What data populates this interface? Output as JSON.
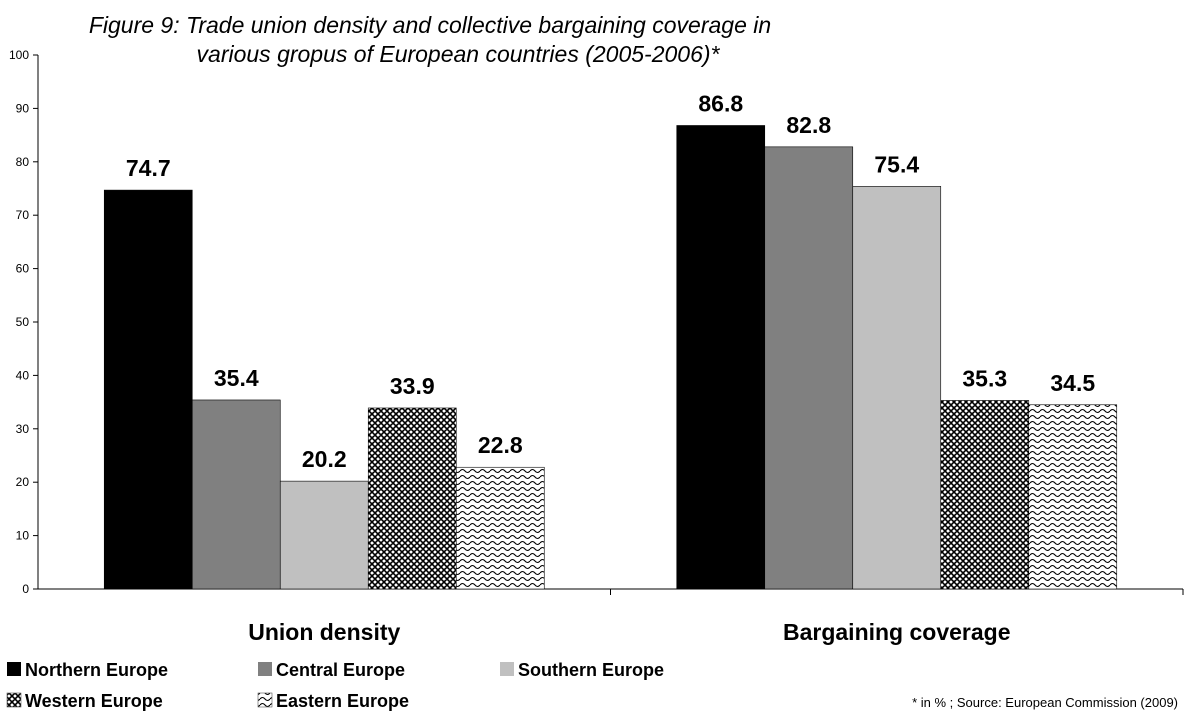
{
  "chart_data": {
    "type": "bar",
    "title_lines": [
      "Figure 9:  Trade union density and collective bargaining coverage in",
      "various gropus of European countries (2005-2006)*"
    ],
    "categories": [
      "Union density",
      "Bargaining coverage"
    ],
    "series": [
      {
        "name": "Northern Europe",
        "values": [
          74.7,
          86.8
        ],
        "fill": "#000000",
        "pattern": "solid"
      },
      {
        "name": "Central Europe",
        "values": [
          35.4,
          82.8
        ],
        "fill": "#808080",
        "pattern": "solid"
      },
      {
        "name": "Southern Europe",
        "values": [
          20.2,
          75.4
        ],
        "fill": "#c0c0c0",
        "pattern": "solid"
      },
      {
        "name": "Western Europe",
        "values": [
          33.9,
          35.3
        ],
        "fill": "#000000",
        "pattern": "crosshatch"
      },
      {
        "name": "Eastern Europe",
        "values": [
          22.8,
          34.5
        ],
        "fill": "#000000",
        "pattern": "wave"
      }
    ],
    "ylim": [
      0,
      100
    ],
    "yticks": [
      "0",
      "10",
      "20",
      "30",
      "40",
      "50",
      "60",
      "70",
      "80",
      "90",
      "100"
    ],
    "grid": false,
    "legend_position": "bottom-left",
    "footnote": "* in % ; Source: European Commission (2009)"
  }
}
